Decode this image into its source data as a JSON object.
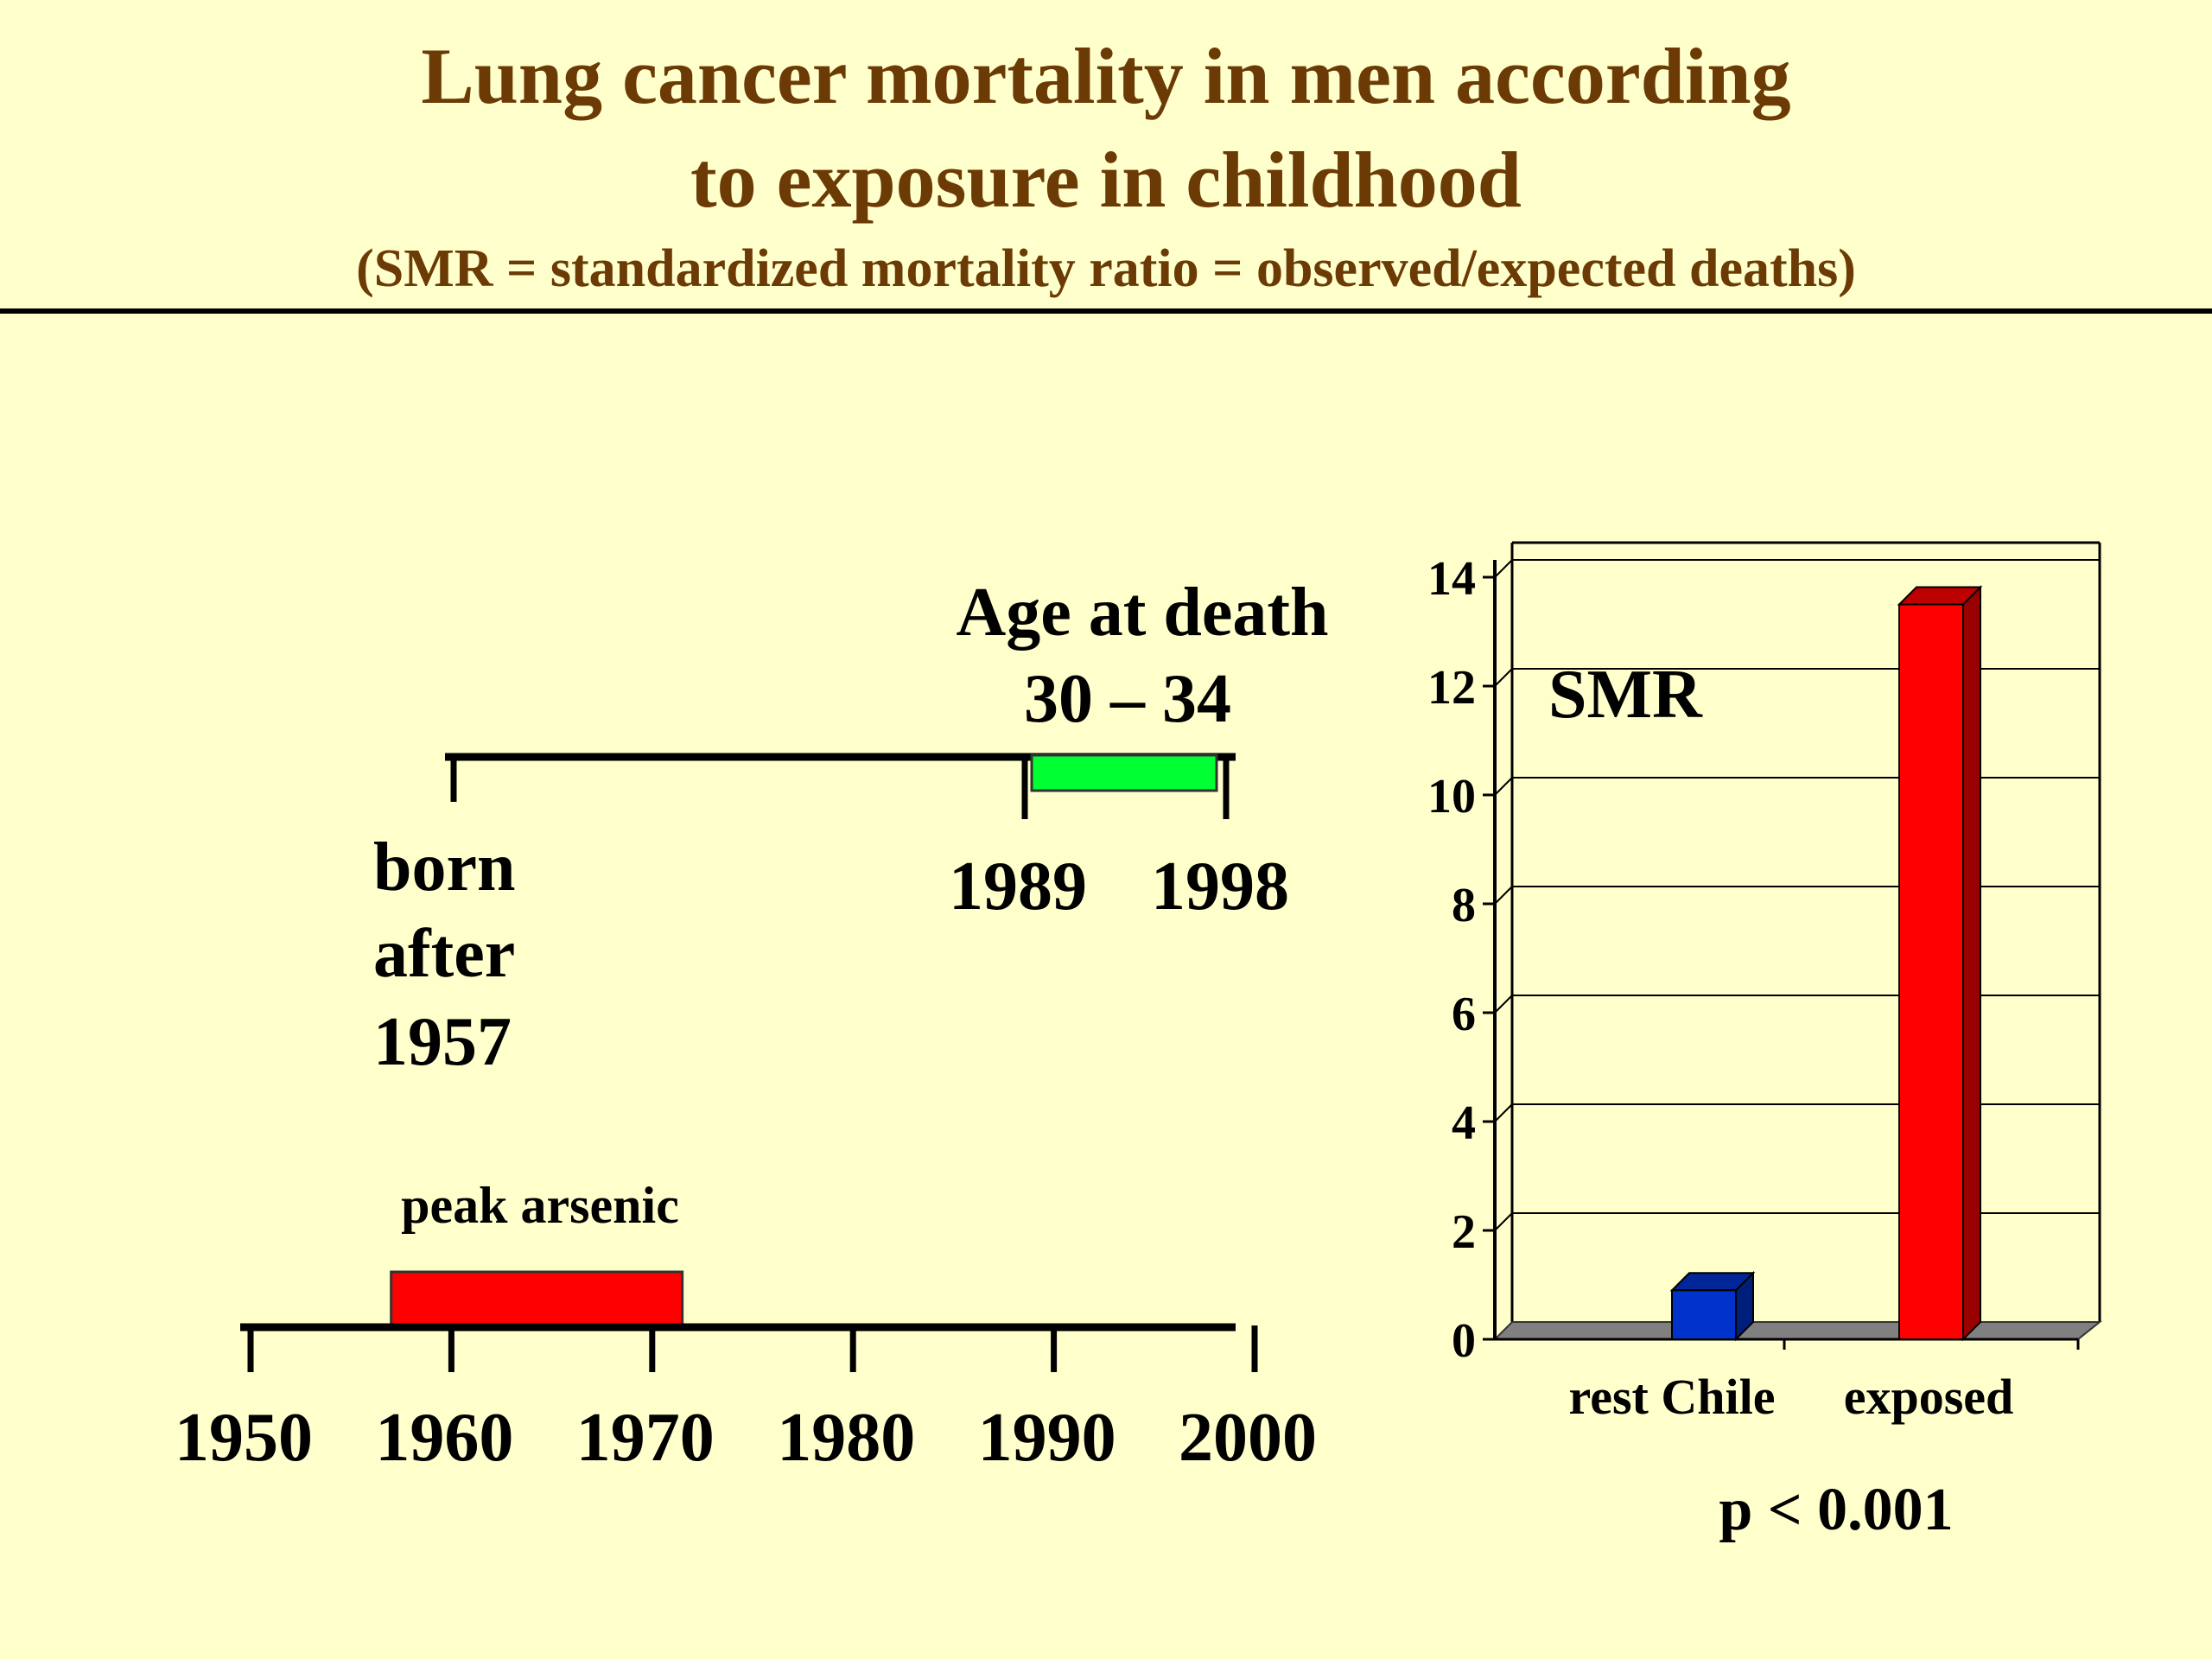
{
  "title_line1": "Lung cancer mortality in men according",
  "title_line2": "to exposure in childhood",
  "subtitle": "(SMR = standardized mortality ratio = observed/expected deaths)",
  "timeline": {
    "axis_ticks": [
      "1950",
      "1960",
      "1970",
      "1980",
      "1990",
      "2000"
    ],
    "axis_start": 1950,
    "axis_end": 2000,
    "peak_label": "peak arsenic",
    "peak_range": [
      1957,
      1971.5
    ],
    "peak_color": "#ff0000",
    "born_label": [
      "born",
      "after",
      "1957"
    ],
    "age_label_line1": "Age at death",
    "age_label_line2": "30 – 34",
    "death_range": [
      1989,
      1998
    ],
    "death_range_labels": [
      "1989",
      "1998"
    ],
    "death_color": "#00ff33"
  },
  "chart_data": {
    "type": "bar",
    "categories": [
      "rest Chile",
      "exposed"
    ],
    "values": [
      0.9,
      13.5
    ],
    "colors": [
      "#0033cc",
      "#ff0000"
    ],
    "ylabel": "SMR",
    "ylim": [
      0,
      14
    ],
    "yticks": [
      "0",
      "2",
      "4",
      "6",
      "8",
      "10",
      "12",
      "14"
    ],
    "grid": true,
    "three_d": true,
    "annotation": "p < 0.001"
  }
}
